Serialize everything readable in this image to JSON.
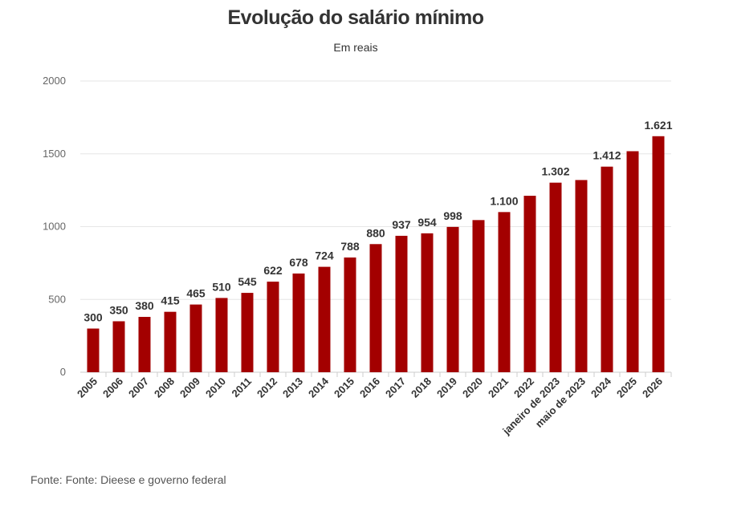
{
  "chart_data": {
    "type": "bar",
    "title": "Evolução do salário mínimo",
    "subtitle": "Em reais",
    "source": "Fonte: Fonte: Dieese e governo federal",
    "categories": [
      "2005",
      "2006",
      "2007",
      "2008",
      "2009",
      "2010",
      "2011",
      "2012",
      "2013",
      "2014",
      "2015",
      "2016",
      "2017",
      "2018",
      "2019",
      "2020",
      "2021",
      "2022",
      "janeiro de 2023",
      "maio de 2023",
      "2024",
      "2025",
      "2026"
    ],
    "values": [
      300,
      350,
      380,
      415,
      465,
      510,
      545,
      622,
      678,
      724,
      788,
      880,
      937,
      954,
      998,
      1045,
      1100,
      1212,
      1302,
      1320,
      1412,
      1518,
      1621
    ],
    "data_labels": [
      "300",
      "350",
      "380",
      "415",
      "465",
      "510",
      "545",
      "622",
      "678",
      "724",
      "788",
      "880",
      "937",
      "954",
      "998",
      "",
      "1.100",
      "",
      "1.302",
      "",
      "1.412",
      "",
      "1.621"
    ],
    "ylim": [
      0,
      2000
    ],
    "yticks": [
      "0",
      "500",
      "1000",
      "1500",
      "2000"
    ],
    "grid": true,
    "bar_color": "#a30000"
  }
}
